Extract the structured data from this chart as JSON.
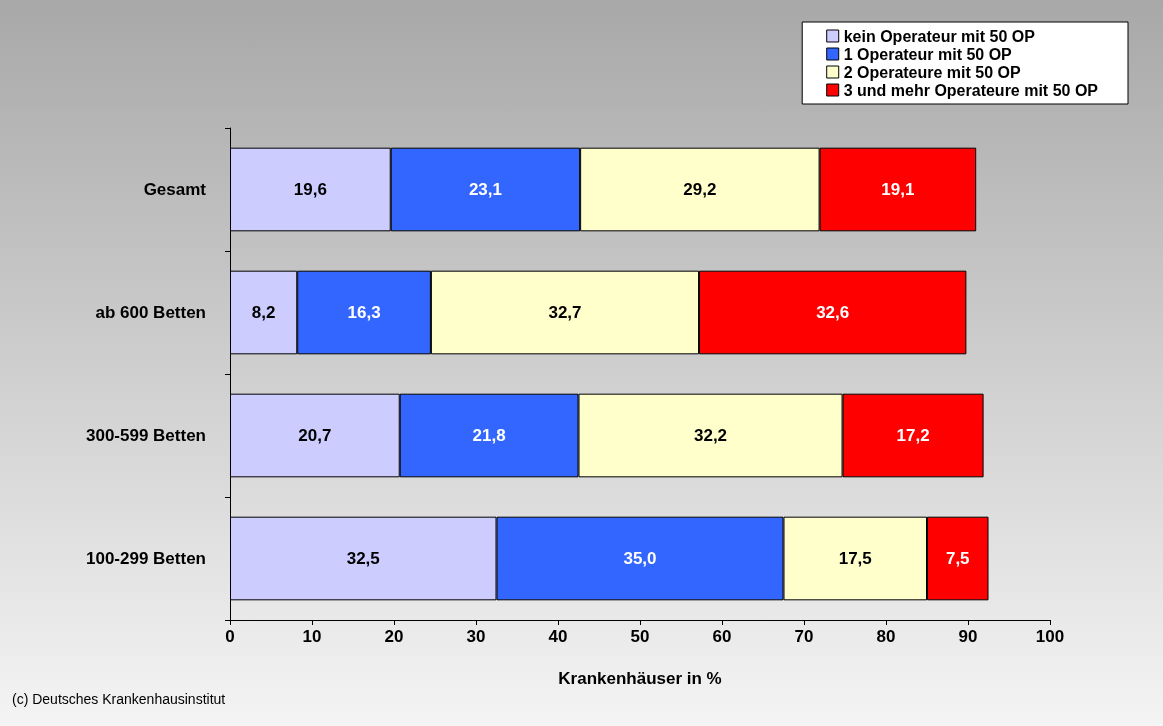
{
  "chart_data": {
    "type": "bar",
    "orientation": "horizontal",
    "stacked": true,
    "categories": [
      "Gesamt",
      "ab 600 Betten",
      "300-599 Betten",
      "100-299 Betten"
    ],
    "series": [
      {
        "name": "kein Operateur mit 50 OP",
        "color": "#ccccff",
        "values": [
          19.6,
          8.2,
          20.7,
          32.5
        ],
        "value_labels": [
          "19,6",
          "8,2",
          "20,7",
          "32,5"
        ]
      },
      {
        "name": "1 Operateur mit 50 OP",
        "color": "#3366ff",
        "values": [
          23.1,
          16.3,
          21.8,
          35.0
        ],
        "value_labels": [
          "23,1",
          "16,3",
          "21,8",
          "35,0"
        ]
      },
      {
        "name": "2 Operateure mit 50 OP",
        "color": "#ffffcc",
        "values": [
          29.2,
          32.7,
          32.2,
          17.5
        ],
        "value_labels": [
          "29,2",
          "32,7",
          "32,2",
          "17,5"
        ]
      },
      {
        "name": "3 und mehr Operateure mit 50 OP",
        "color": "#ff0000",
        "values": [
          19.1,
          32.6,
          17.2,
          7.5
        ],
        "value_labels": [
          "19,1",
          "32,6",
          "17,2",
          "7,5"
        ]
      }
    ],
    "xlim": [
      0,
      100
    ],
    "xticks": [
      0,
      10,
      20,
      30,
      40,
      50,
      60,
      70,
      80,
      90,
      100
    ],
    "xlabel": "Krankenhäuser in %",
    "annotations": [
      "(c) Deutsches Krankenhausinstitut"
    ],
    "legend": "top right",
    "grid": false
  }
}
